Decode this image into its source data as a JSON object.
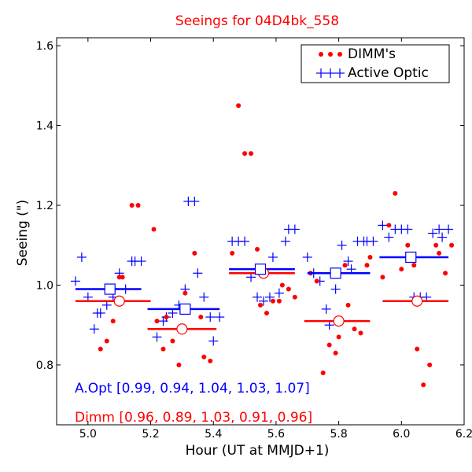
{
  "chart_data": {
    "type": "scatter",
    "title": "Seeings for 04D4bk_558",
    "xlabel": "Hour (UT at MMJD+1)",
    "ylabel": "Seeing (\")",
    "xlim": [
      4.9,
      6.2
    ],
    "ylim": [
      0.65,
      1.62
    ],
    "xticks": [
      "5.0",
      "5.2",
      "5.4",
      "5.6",
      "5.8",
      "6.0",
      "6.2"
    ],
    "yticks": [
      "0.8",
      "1.0",
      "1.2",
      "1.4",
      "1.6"
    ],
    "legend_position": "top-right",
    "colors": {
      "dimm": "#ff0000",
      "aopt": "#0000ff",
      "title": "#ff0000"
    },
    "series": [
      {
        "name": "DIMM's",
        "key": "dimm",
        "points": [
          [
            5.04,
            0.84
          ],
          [
            5.06,
            0.86
          ],
          [
            5.08,
            0.91
          ],
          [
            5.1,
            1.02
          ],
          [
            5.11,
            1.02
          ],
          [
            5.14,
            1.2
          ],
          [
            5.16,
            1.2
          ],
          [
            5.21,
            1.14
          ],
          [
            5.22,
            0.91
          ],
          [
            5.24,
            0.84
          ],
          [
            5.25,
            0.92
          ],
          [
            5.27,
            0.86
          ],
          [
            5.29,
            0.8
          ],
          [
            5.31,
            0.98
          ],
          [
            5.34,
            1.08
          ],
          [
            5.36,
            0.92
          ],
          [
            5.37,
            0.82
          ],
          [
            5.39,
            0.81
          ],
          [
            5.46,
            1.08
          ],
          [
            5.48,
            1.45
          ],
          [
            5.5,
            1.33
          ],
          [
            5.52,
            1.33
          ],
          [
            5.54,
            1.09
          ],
          [
            5.55,
            0.95
          ],
          [
            5.57,
            0.93
          ],
          [
            5.59,
            0.96
          ],
          [
            5.61,
            0.96
          ],
          [
            5.62,
            1.0
          ],
          [
            5.64,
            0.99
          ],
          [
            5.66,
            0.97
          ],
          [
            5.71,
            1.03
          ],
          [
            5.73,
            1.01
          ],
          [
            5.75,
            0.78
          ],
          [
            5.77,
            0.85
          ],
          [
            5.79,
            0.83
          ],
          [
            5.8,
            0.87
          ],
          [
            5.82,
            1.05
          ],
          [
            5.83,
            0.95
          ],
          [
            5.85,
            0.89
          ],
          [
            5.87,
            0.88
          ],
          [
            5.89,
            1.05
          ],
          [
            5.9,
            1.07
          ],
          [
            5.94,
            1.02
          ],
          [
            5.96,
            1.15
          ],
          [
            5.98,
            1.23
          ],
          [
            6.0,
            1.04
          ],
          [
            6.02,
            1.1
          ],
          [
            6.04,
            1.05
          ],
          [
            6.05,
            0.84
          ],
          [
            6.07,
            0.75
          ],
          [
            6.09,
            0.8
          ],
          [
            6.11,
            1.1
          ],
          [
            6.12,
            1.08
          ],
          [
            6.14,
            1.03
          ],
          [
            6.16,
            1.1
          ]
        ],
        "means": [
          {
            "x": 5.1,
            "y": 0.96,
            "x0": 4.96,
            "x1": 5.2
          },
          {
            "x": 5.3,
            "y": 0.89,
            "x0": 5.19,
            "x1": 5.41
          },
          {
            "x": 5.56,
            "y": 1.03,
            "x0": 5.45,
            "x1": 5.66
          },
          {
            "x": 5.8,
            "y": 0.91,
            "x0": 5.69,
            "x1": 5.9
          },
          {
            "x": 6.05,
            "y": 0.96,
            "x0": 5.94,
            "x1": 6.15
          }
        ],
        "summary_text": "Dimm [0.96, 0.89, 1.03, 0.91, 0.96]"
      },
      {
        "name": "Active Optic",
        "key": "aopt",
        "points": [
          [
            4.96,
            1.01
          ],
          [
            4.98,
            1.07
          ],
          [
            5.0,
            0.97
          ],
          [
            5.02,
            0.89
          ],
          [
            5.03,
            0.93
          ],
          [
            5.04,
            0.93
          ],
          [
            5.06,
            0.95
          ],
          [
            5.08,
            0.97
          ],
          [
            5.1,
            1.03
          ],
          [
            5.12,
            0.99
          ],
          [
            5.14,
            1.06
          ],
          [
            5.15,
            1.06
          ],
          [
            5.17,
            1.06
          ],
          [
            5.22,
            0.87
          ],
          [
            5.24,
            0.91
          ],
          [
            5.25,
            0.92
          ],
          [
            5.27,
            0.93
          ],
          [
            5.29,
            0.95
          ],
          [
            5.31,
            0.99
          ],
          [
            5.32,
            1.21
          ],
          [
            5.34,
            1.21
          ],
          [
            5.35,
            1.03
          ],
          [
            5.37,
            0.97
          ],
          [
            5.39,
            0.92
          ],
          [
            5.4,
            0.86
          ],
          [
            5.42,
            0.92
          ],
          [
            5.46,
            1.11
          ],
          [
            5.48,
            1.11
          ],
          [
            5.5,
            1.11
          ],
          [
            5.52,
            1.02
          ],
          [
            5.54,
            0.97
          ],
          [
            5.56,
            0.96
          ],
          [
            5.58,
            0.97
          ],
          [
            5.59,
            1.07
          ],
          [
            5.61,
            0.98
          ],
          [
            5.63,
            1.11
          ],
          [
            5.64,
            1.14
          ],
          [
            5.66,
            1.14
          ],
          [
            5.7,
            1.07
          ],
          [
            5.72,
            1.03
          ],
          [
            5.74,
            1.01
          ],
          [
            5.76,
            0.94
          ],
          [
            5.77,
            0.9
          ],
          [
            5.79,
            0.99
          ],
          [
            5.81,
            1.1
          ],
          [
            5.83,
            1.06
          ],
          [
            5.84,
            1.04
          ],
          [
            5.86,
            1.11
          ],
          [
            5.88,
            1.11
          ],
          [
            5.89,
            1.11
          ],
          [
            5.91,
            1.11
          ],
          [
            5.94,
            1.15
          ],
          [
            5.96,
            1.12
          ],
          [
            5.98,
            1.14
          ],
          [
            6.0,
            1.14
          ],
          [
            6.02,
            1.14
          ],
          [
            6.04,
            0.97
          ],
          [
            6.06,
            0.97
          ],
          [
            6.08,
            0.97
          ],
          [
            6.1,
            1.13
          ],
          [
            6.12,
            1.14
          ],
          [
            6.13,
            1.12
          ],
          [
            6.15,
            1.14
          ]
        ],
        "means": [
          {
            "x": 5.07,
            "y": 0.99,
            "x0": 4.96,
            "x1": 5.17
          },
          {
            "x": 5.31,
            "y": 0.94,
            "x0": 5.19,
            "x1": 5.42
          },
          {
            "x": 5.55,
            "y": 1.04,
            "x0": 5.45,
            "x1": 5.66
          },
          {
            "x": 5.79,
            "y": 1.03,
            "x0": 5.7,
            "x1": 5.9
          },
          {
            "x": 6.03,
            "y": 1.07,
            "x0": 5.93,
            "x1": 6.15
          }
        ],
        "summary_text": "A.Opt [0.99, 0.94, 1.04, 1.03, 1.07]"
      }
    ]
  }
}
